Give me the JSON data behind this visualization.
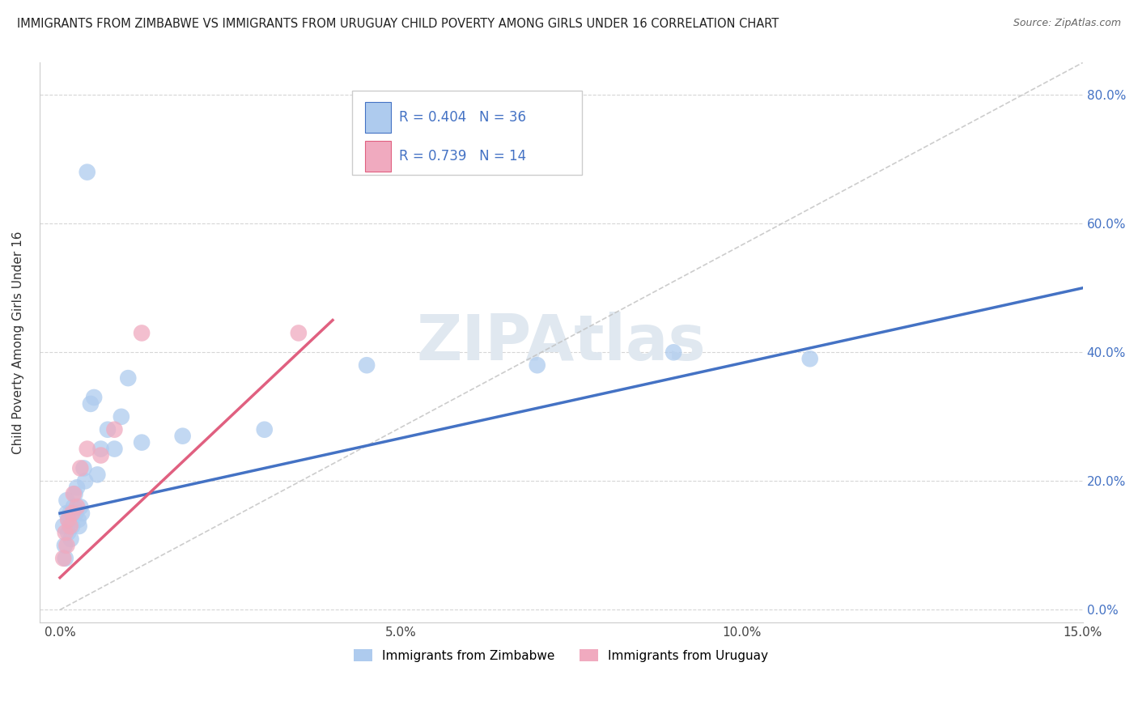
{
  "title": "IMMIGRANTS FROM ZIMBABWE VS IMMIGRANTS FROM URUGUAY CHILD POVERTY AMONG GIRLS UNDER 16 CORRELATION CHART",
  "source": "Source: ZipAtlas.com",
  "ylabel": "Child Poverty Among Girls Under 16",
  "xlim": [
    -0.3,
    15.0
  ],
  "ylim": [
    -2.0,
    85.0
  ],
  "xticks": [
    0.0,
    5.0,
    10.0,
    15.0
  ],
  "yticks": [
    0.0,
    20.0,
    40.0,
    60.0,
    80.0
  ],
  "legend_R1": "R = 0.404",
  "legend_N1": "N = 36",
  "legend_R2": "R = 0.739",
  "legend_N2": "N = 14",
  "color_zimbabwe": "#aecbee",
  "color_uruguay": "#f0aabf",
  "line_color_zimbabwe": "#4472c4",
  "line_color_uruguay": "#e06080",
  "zim_line_x0": 0.0,
  "zim_line_y0": 15.0,
  "zim_line_x1": 15.0,
  "zim_line_y1": 50.0,
  "uru_line_x0": 0.0,
  "uru_line_y0": 5.0,
  "uru_line_x1": 4.0,
  "uru_line_y1": 45.0,
  "dash_line_x0": 0.0,
  "dash_line_y0": 0.0,
  "dash_line_x1": 15.0,
  "dash_line_y1": 85.0,
  "background_color": "#ffffff",
  "grid_color": "#cccccc",
  "title_fontsize": 10.5,
  "axis_label_fontsize": 11,
  "tick_fontsize": 11,
  "watermark_text": "ZIPAtlas",
  "watermark_color": "#e0e8f0",
  "zim_scatter_x": [
    0.05,
    0.07,
    0.08,
    0.1,
    0.1,
    0.12,
    0.13,
    0.15,
    0.16,
    0.18,
    0.2,
    0.22,
    0.23,
    0.25,
    0.27,
    0.28,
    0.3,
    0.32,
    0.35,
    0.37,
    0.4,
    0.45,
    0.5,
    0.55,
    0.6,
    0.7,
    0.8,
    0.9,
    1.0,
    1.2,
    1.8,
    3.0,
    4.5,
    7.0,
    9.0,
    11.0
  ],
  "zim_scatter_y": [
    13.0,
    10.0,
    8.0,
    15.0,
    17.0,
    12.0,
    14.0,
    15.0,
    11.0,
    13.0,
    16.0,
    18.0,
    15.0,
    19.0,
    14.0,
    13.0,
    16.0,
    15.0,
    22.0,
    20.0,
    68.0,
    32.0,
    33.0,
    21.0,
    25.0,
    28.0,
    25.0,
    30.0,
    36.0,
    26.0,
    27.0,
    28.0,
    38.0,
    38.0,
    40.0,
    39.0
  ],
  "uru_scatter_x": [
    0.05,
    0.08,
    0.1,
    0.12,
    0.15,
    0.18,
    0.2,
    0.25,
    0.3,
    0.4,
    0.6,
    0.8,
    1.2,
    3.5
  ],
  "uru_scatter_y": [
    8.0,
    12.0,
    10.0,
    14.0,
    13.0,
    15.0,
    18.0,
    16.0,
    22.0,
    25.0,
    24.0,
    28.0,
    43.0,
    43.0
  ]
}
